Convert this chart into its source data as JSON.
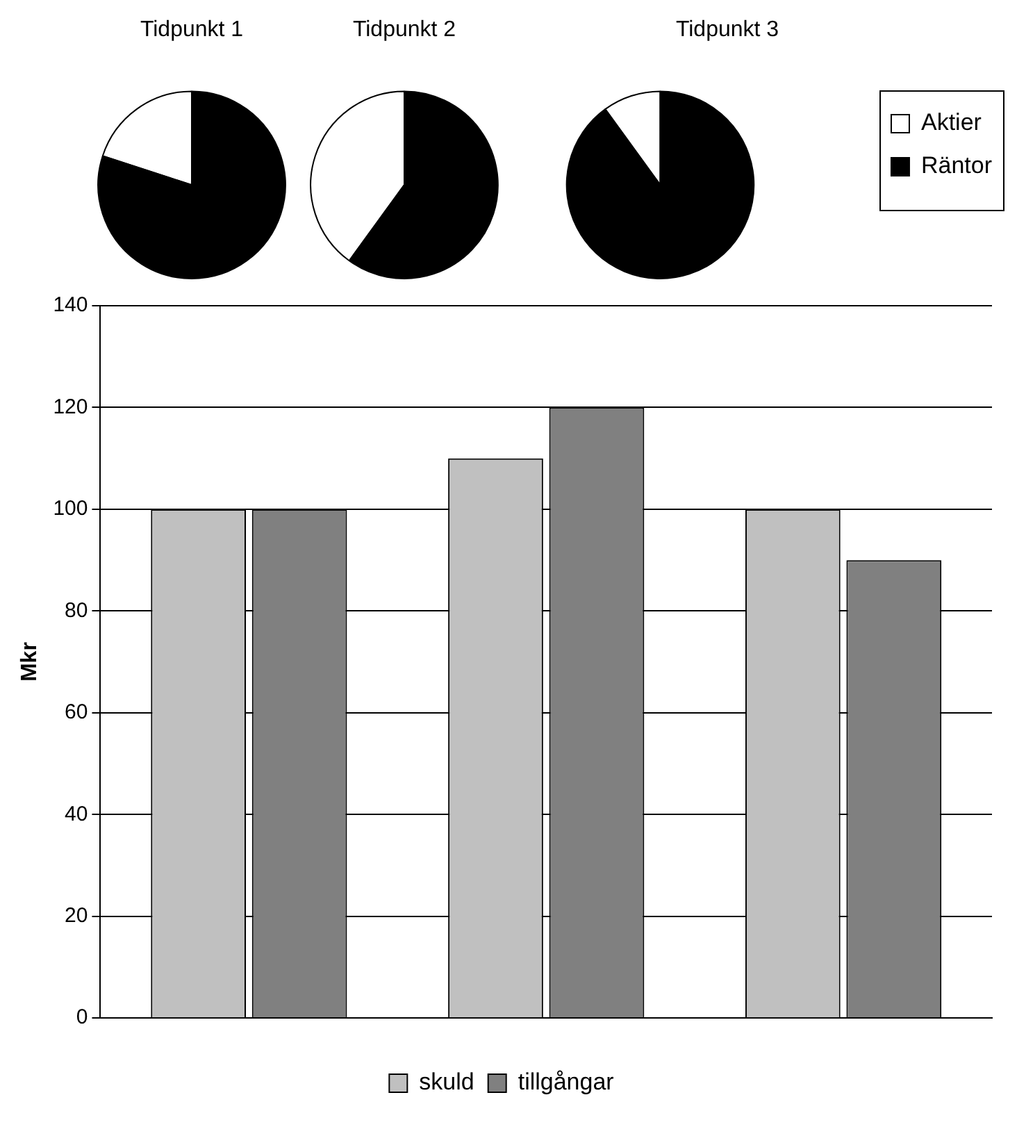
{
  "chart_data": [
    {
      "type": "pie",
      "title": "Tidpunkt 1",
      "categories": [
        null,
        null
      ],
      "values": [
        20,
        80
      ],
      "colors": [
        "#ffffff",
        "#000000"
      ],
      "legend": false
    },
    {
      "type": "pie",
      "title": "Tidpunkt 2",
      "categories": [
        null,
        null
      ],
      "values": [
        40,
        60
      ],
      "colors": [
        "#ffffff",
        "#000000"
      ],
      "legend": false
    },
    {
      "type": "pie",
      "title": "Tidpunkt 3",
      "categories": [
        "Aktier",
        "Räntor"
      ],
      "values": [
        10,
        90
      ],
      "colors": [
        "#ffffff",
        "#000000"
      ],
      "legend": "right"
    },
    {
      "type": "bar",
      "categories": [
        null,
        null,
        null
      ],
      "ylabel": "Mkr",
      "ylim": [
        0,
        140
      ],
      "yticks": [
        0,
        20,
        40,
        60,
        80,
        100,
        120,
        140
      ],
      "grid": "y",
      "legend": "bottom",
      "series": [
        {
          "name": "skuld",
          "color": "#c0c0c0",
          "values": [
            100,
            110,
            100
          ]
        },
        {
          "name": "tillgångar",
          "color": "#808080",
          "values": [
            100,
            120,
            90
          ]
        }
      ]
    }
  ]
}
